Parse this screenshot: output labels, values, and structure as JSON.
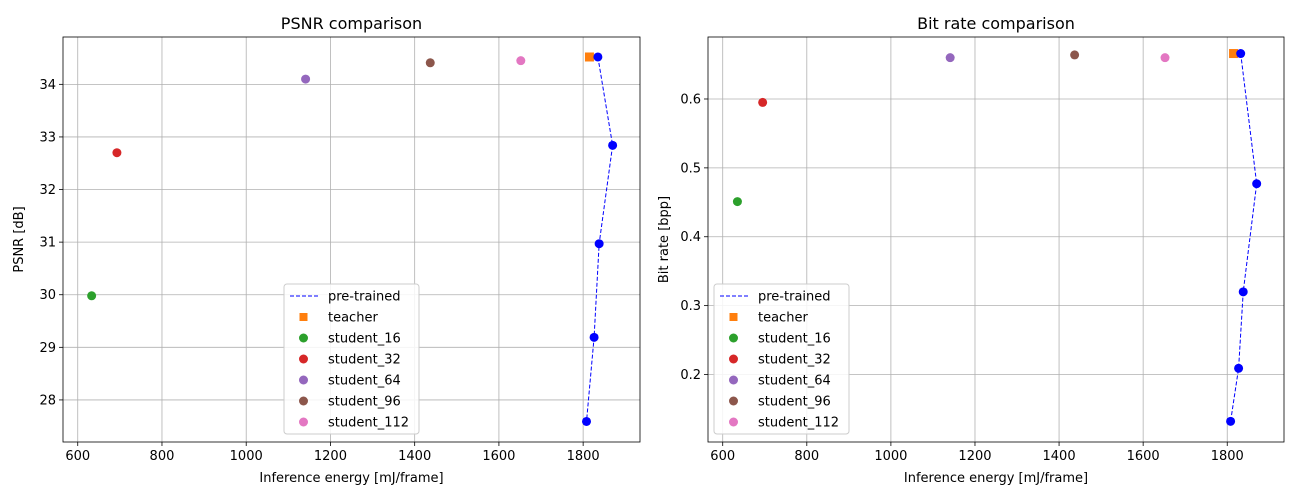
{
  "legend": [
    {
      "key": "pretrained",
      "label": "pre-trained",
      "marker": "dashed-line",
      "color": "#0000ff"
    },
    {
      "key": "teacher",
      "label": "teacher",
      "marker": "square",
      "color": "#ff7f0e"
    },
    {
      "key": "student_16",
      "label": "student_16",
      "marker": "circle",
      "color": "#2ca02c"
    },
    {
      "key": "student_32",
      "label": "student_32",
      "marker": "circle",
      "color": "#d62728"
    },
    {
      "key": "student_64",
      "label": "student_64",
      "marker": "circle",
      "color": "#9467bd"
    },
    {
      "key": "student_96",
      "label": "student_96",
      "marker": "circle",
      "color": "#8c564b"
    },
    {
      "key": "student_112",
      "label": "student_112",
      "marker": "circle",
      "color": "#e377c2"
    }
  ],
  "chart_data": [
    {
      "type": "scatter",
      "title": "PSNR comparison",
      "xlabel": "Inference energy [mJ/frame]",
      "ylabel": "PSNR [dB]",
      "xlim": [
        565,
        1935
      ],
      "ylim": [
        27.2,
        34.9
      ],
      "xticks": [
        600,
        800,
        1000,
        1200,
        1400,
        1600,
        1800
      ],
      "yticks": [
        28,
        29,
        30,
        31,
        32,
        33,
        34
      ],
      "ytick_labels": [
        "28",
        "29",
        "30",
        "31",
        "32",
        "33",
        "34"
      ],
      "grid": true,
      "legend_position": "lower-center",
      "pretrained": {
        "x": [
          1835,
          1870,
          1838,
          1826,
          1808
        ],
        "y": [
          34.52,
          32.84,
          30.97,
          29.19,
          27.59
        ]
      },
      "points": [
        {
          "series": "teacher",
          "x": 1815,
          "y": 34.52
        },
        {
          "series": "student_16",
          "x": 633,
          "y": 29.98
        },
        {
          "series": "student_32",
          "x": 693,
          "y": 32.7
        },
        {
          "series": "student_64",
          "x": 1141,
          "y": 34.1
        },
        {
          "series": "student_96",
          "x": 1437,
          "y": 34.41
        },
        {
          "series": "student_112",
          "x": 1652,
          "y": 34.45
        }
      ]
    },
    {
      "type": "scatter",
      "title": "Bit rate comparison",
      "xlabel": "Inference energy [mJ/frame]",
      "ylabel": "Bit rate [bpp]",
      "xlim": [
        565,
        1935
      ],
      "ylim": [
        0.102,
        0.69
      ],
      "xticks": [
        600,
        800,
        1000,
        1200,
        1400,
        1600,
        1800
      ],
      "yticks": [
        0.2,
        0.3,
        0.4,
        0.5,
        0.6
      ],
      "ytick_labels": [
        "0.2",
        "0.3",
        "0.4",
        "0.5",
        "0.6"
      ],
      "grid": true,
      "legend_position": "lower-left",
      "pretrained": {
        "x": [
          1832,
          1870,
          1838,
          1827,
          1808
        ],
        "y": [
          0.666,
          0.477,
          0.32,
          0.209,
          0.132
        ]
      },
      "points": [
        {
          "series": "teacher",
          "x": 1815,
          "y": 0.666
        },
        {
          "series": "student_16",
          "x": 635,
          "y": 0.451
        },
        {
          "series": "student_32",
          "x": 695,
          "y": 0.595
        },
        {
          "series": "student_64",
          "x": 1141,
          "y": 0.66
        },
        {
          "series": "student_96",
          "x": 1437,
          "y": 0.664
        },
        {
          "series": "student_112",
          "x": 1652,
          "y": 0.66
        }
      ]
    }
  ]
}
